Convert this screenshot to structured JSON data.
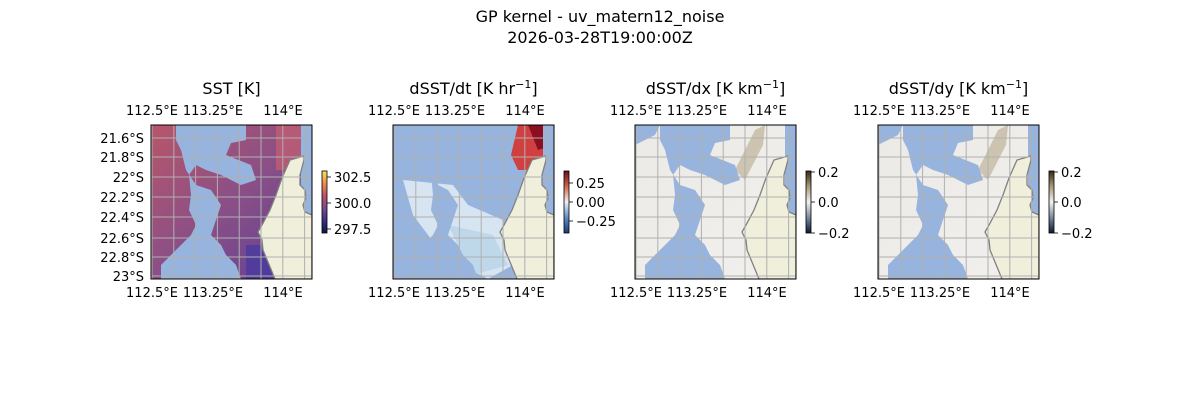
{
  "figure": {
    "title": "GP kernel - uv_matern12_noise",
    "subtitle": "2026-03-28T19:00:00Z"
  },
  "colors": {
    "ocean_mask": "#97b4df",
    "land": "#efefdb",
    "coast": "#808080",
    "grid": "#b0b0b0"
  },
  "axes": {
    "lon_ticks": [
      "112.5°E",
      "113.25°E",
      "114°E"
    ],
    "lat_ticks": [
      "21.6°S",
      "21.8°S",
      "22°S",
      "22.2°S",
      "22.4°S",
      "22.6°S",
      "22.8°S",
      "23°S"
    ]
  },
  "panels": [
    {
      "title": "SST [K]",
      "title_sup": "",
      "title_end": "",
      "colorbar_ticks": [
        "302.5",
        "300.0",
        "297.5"
      ],
      "colormap": "thermal",
      "show_lat_labels": true
    },
    {
      "title": "dSST/dt [K hr",
      "title_sup": "−1",
      "title_end": "]",
      "colorbar_ticks": [
        "0.25",
        "0.00",
        "−0.25"
      ],
      "colormap": "balance",
      "show_lat_labels": false
    },
    {
      "title": "dSST/dx [K km",
      "title_sup": "−1",
      "title_end": "]",
      "colorbar_ticks": [
        "0.2",
        "0.0",
        "−0.2"
      ],
      "colormap": "diff",
      "show_lat_labels": false
    },
    {
      "title": "dSST/dy [K km",
      "title_sup": "−1",
      "title_end": "]",
      "colorbar_ticks": [
        "0.2",
        "0.0",
        "−0.2"
      ],
      "colormap": "diff",
      "show_lat_labels": false
    }
  ],
  "chart_data": {
    "type": "heatmap",
    "lon_range": [
      112.45,
      114.15
    ],
    "lat_range": [
      -23.0,
      -21.5
    ],
    "colorbar_ranges": [
      [
        297.0,
        303.0
      ],
      [
        -0.35,
        0.35
      ],
      [
        -0.2,
        0.2
      ],
      [
        -0.2,
        0.2
      ]
    ]
  }
}
